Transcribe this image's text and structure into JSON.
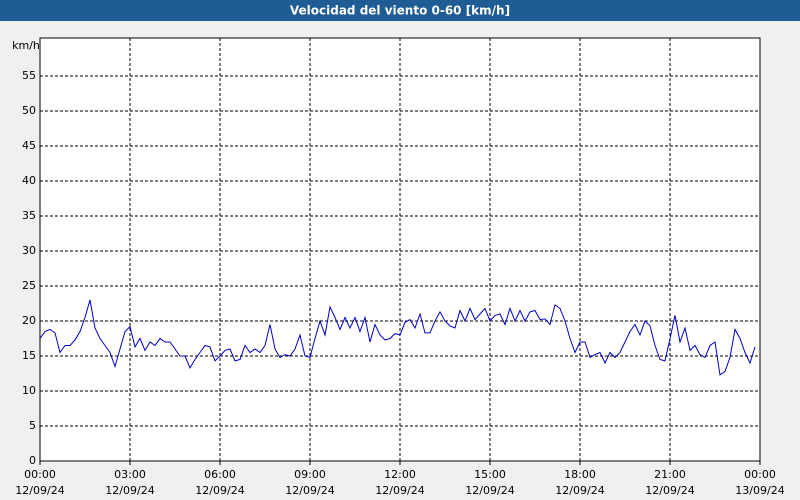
{
  "chart_data": {
    "type": "line",
    "title": "Velocidad del viento 0-60 [km/h]",
    "y_label": "km/h",
    "xlim": [
      0,
      1440
    ],
    "xticks": [
      {
        "value": 0,
        "label": "00:00"
      },
      {
        "value": 180,
        "label": "03:00"
      },
      {
        "value": 360,
        "label": "06:00"
      },
      {
        "value": 540,
        "label": "09:00"
      },
      {
        "value": 720,
        "label": "12:00"
      },
      {
        "value": 900,
        "label": "15:00"
      },
      {
        "value": 1080,
        "label": "18:00"
      },
      {
        "value": 1260,
        "label": "21:00"
      },
      {
        "value": 1440,
        "label": "00:00"
      }
    ],
    "xtick_dates": [
      "12/09/24",
      "12/09/24",
      "12/09/24",
      "12/09/24",
      "12/09/24",
      "12/09/24",
      "12/09/24",
      "12/09/24",
      "13/09/24"
    ],
    "ylim": [
      0,
      60
    ],
    "yticks": [
      0,
      5,
      10,
      15,
      20,
      25,
      30,
      35,
      40,
      45,
      50,
      55
    ],
    "grid": true,
    "x": [
      0,
      10,
      20,
      30,
      40,
      50,
      60,
      70,
      80,
      90,
      100,
      110,
      120,
      130,
      140,
      150,
      160,
      170,
      180,
      190,
      200,
      210,
      220,
      230,
      240,
      250,
      260,
      270,
      280,
      290,
      300,
      310,
      320,
      330,
      340,
      350,
      360,
      370,
      380,
      390,
      400,
      410,
      420,
      430,
      440,
      450,
      460,
      470,
      480,
      490,
      500,
      510,
      520,
      530,
      540,
      550,
      560,
      570,
      580,
      590,
      600,
      610,
      620,
      630,
      640,
      650,
      660,
      670,
      680,
      690,
      700,
      710,
      720,
      730,
      740,
      750,
      760,
      770,
      780,
      790,
      800,
      810,
      820,
      830,
      840,
      850,
      860,
      870,
      880,
      890,
      900,
      910,
      920,
      930,
      940,
      950,
      960,
      970,
      980,
      990,
      1000,
      1010,
      1020,
      1030,
      1040,
      1050,
      1060,
      1070,
      1080,
      1090,
      1100,
      1110,
      1120,
      1130,
      1140,
      1150,
      1160,
      1170,
      1180,
      1190,
      1200,
      1210,
      1220,
      1230,
      1240,
      1250,
      1260,
      1270,
      1280,
      1290,
      1300,
      1310,
      1320,
      1330,
      1340,
      1350,
      1360,
      1370,
      1380,
      1390,
      1400,
      1410,
      1420,
      1430
    ],
    "series": [
      {
        "color": "#0000c8",
        "values": [
          17.5,
          18.5,
          18.8,
          18.3,
          15.5,
          16.5,
          16.5,
          17.3,
          18.5,
          20.5,
          23,
          19,
          17.5,
          16.5,
          15.5,
          13.5,
          16,
          18.5,
          19.2,
          16.3,
          17.5,
          15.8,
          17,
          16.5,
          17.5,
          17,
          17,
          16,
          15,
          15,
          13.3,
          14.5,
          15.5,
          16.5,
          16.3,
          14.3,
          15,
          15.8,
          16,
          14.3,
          14.5,
          16.5,
          15.5,
          16,
          15.5,
          16.5,
          19.5,
          16,
          14.8,
          15.2,
          15,
          16,
          18,
          15,
          14.8,
          17.5,
          20,
          18,
          22,
          20.5,
          18.8,
          20.5,
          19,
          20.5,
          18.5,
          20.5,
          17,
          19.5,
          18,
          17.3,
          17.5,
          18.2,
          18,
          19.8,
          20.2,
          19,
          21,
          18.3,
          18.3,
          20,
          21.3,
          20,
          19.3,
          19,
          21.5,
          20,
          21.8,
          20.2,
          21,
          21.8,
          20,
          20.8,
          21,
          19.5,
          21.8,
          20,
          21.5,
          20,
          21.3,
          21.5,
          20.2,
          20.3,
          19.5,
          22.3,
          21.8,
          20,
          17.5,
          15.5,
          17,
          17,
          14.8,
          15.2,
          15.5,
          14,
          15.5,
          14.8,
          15.5,
          17,
          18.5,
          19.5,
          18,
          20,
          19.3,
          16.5,
          14.5,
          14.3,
          17.5,
          20.8,
          17,
          19,
          15.8,
          16.5,
          15.2,
          14.8,
          16.5,
          17,
          12.3,
          12.8,
          14.8,
          18.8,
          17.5,
          15.5,
          14,
          16.3
        ]
      }
    ]
  }
}
